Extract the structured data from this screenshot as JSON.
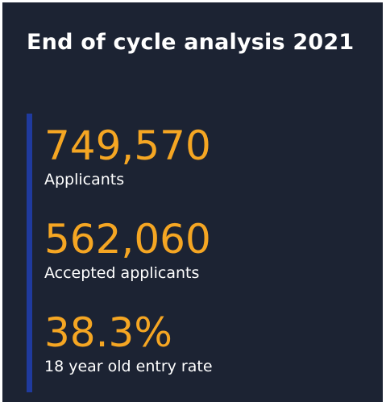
{
  "header": {
    "title": "End of cycle analysis 2021"
  },
  "stats": [
    {
      "value": "749,570",
      "label": "Applicants"
    },
    {
      "value": "562,060",
      "label": "Accepted applicants"
    },
    {
      "value": "38.3%",
      "label": "18 year old entry rate"
    }
  ]
}
